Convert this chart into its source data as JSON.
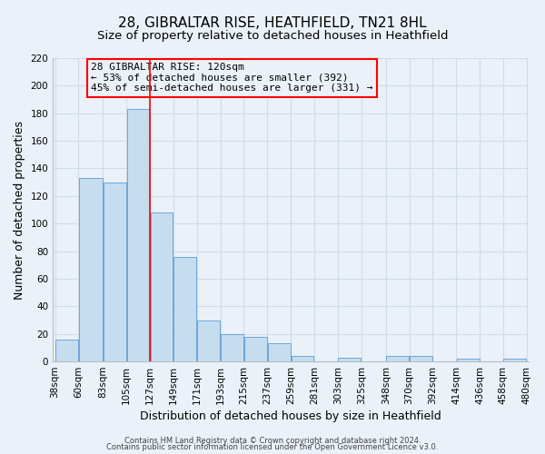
{
  "title": "28, GIBRALTAR RISE, HEATHFIELD, TN21 8HL",
  "subtitle": "Size of property relative to detached houses in Heathfield",
  "xlabel": "Distribution of detached houses by size in Heathfield",
  "ylabel": "Number of detached properties",
  "bar_left_edges": [
    38,
    60,
    83,
    105,
    127,
    149,
    171,
    193,
    215,
    237,
    259,
    281,
    303,
    325,
    348,
    370,
    392,
    414,
    436,
    458
  ],
  "bar_widths": [
    22,
    23,
    22,
    22,
    22,
    22,
    22,
    22,
    22,
    22,
    22,
    22,
    22,
    23,
    22,
    22,
    22,
    22,
    22,
    22
  ],
  "bar_heights": [
    16,
    133,
    130,
    183,
    108,
    76,
    30,
    20,
    18,
    13,
    4,
    0,
    3,
    0,
    4,
    4,
    0,
    2,
    0,
    2
  ],
  "bar_color": "#c6ddf0",
  "bar_edgecolor": "#5b9bd5",
  "redline_x": 127,
  "ylim": [
    0,
    220
  ],
  "yticks": [
    0,
    20,
    40,
    60,
    80,
    100,
    120,
    140,
    160,
    180,
    200,
    220
  ],
  "xtick_labels": [
    "38sqm",
    "60sqm",
    "83sqm",
    "105sqm",
    "127sqm",
    "149sqm",
    "171sqm",
    "193sqm",
    "215sqm",
    "237sqm",
    "259sqm",
    "281sqm",
    "303sqm",
    "325sqm",
    "348sqm",
    "370sqm",
    "392sqm",
    "414sqm",
    "436sqm",
    "458sqm",
    "480sqm"
  ],
  "annotation_title": "28 GIBRALTAR RISE: 120sqm",
  "annotation_line1": "← 53% of detached houses are smaller (392)",
  "annotation_line2": "45% of semi-detached houses are larger (331) →",
  "footnote1": "Contains HM Land Registry data © Crown copyright and database right 2024.",
  "footnote2": "Contains public sector information licensed under the Open Government Licence v3.0.",
  "grid_color": "#d0dce8",
  "background_color": "#eaf1f8",
  "title_fontsize": 11,
  "subtitle_fontsize": 9.5,
  "axis_label_fontsize": 9,
  "tick_fontsize": 7.5,
  "annotation_fontsize": 8,
  "footnote_fontsize": 6
}
